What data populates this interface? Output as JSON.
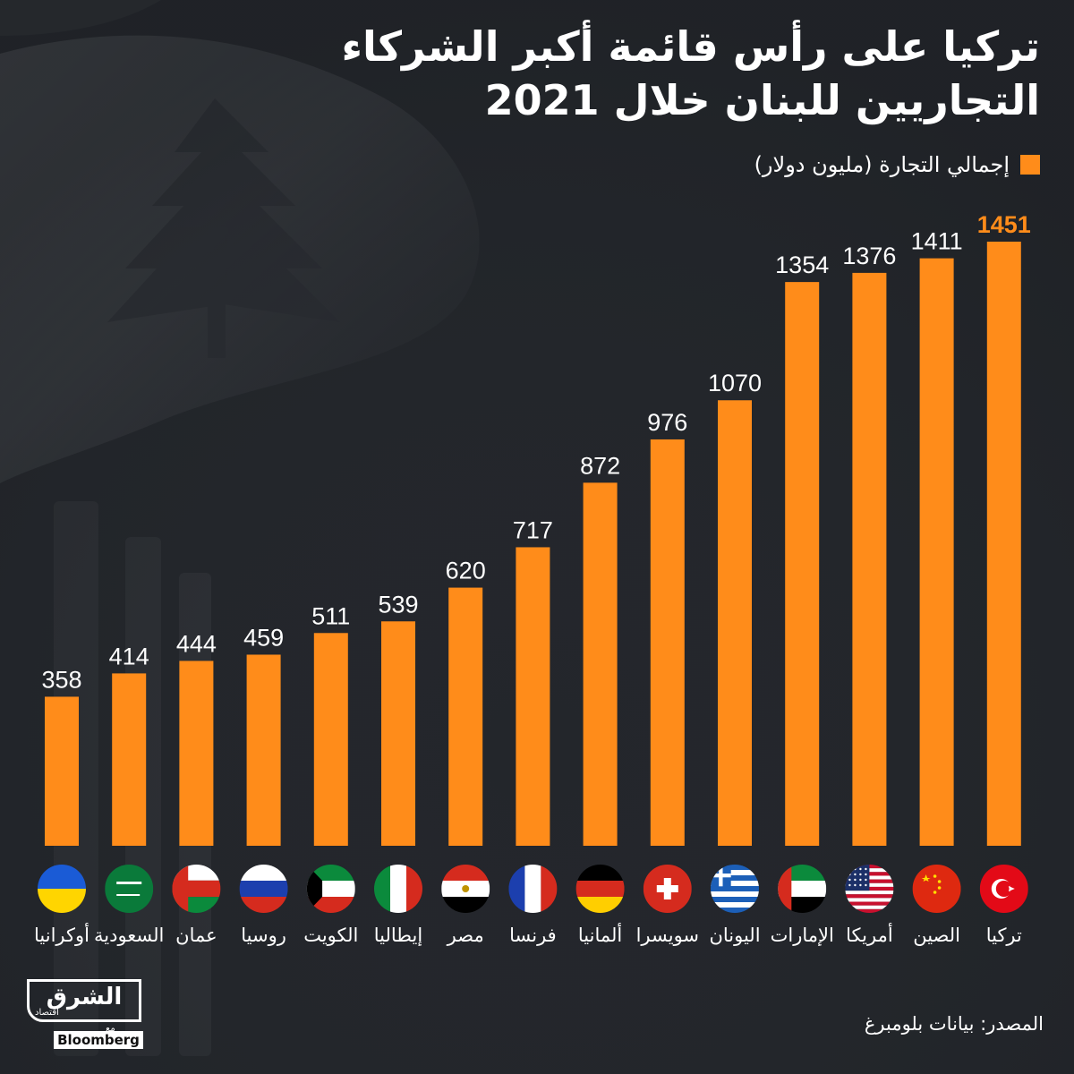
{
  "title": {
    "line1": "تركيا على رأس قائمة أكبر الشركاء",
    "line2": "التجاريين للبنان خلال 2021"
  },
  "legend": {
    "label": "إجمالي التجارة (مليون دولار)",
    "color": "#ff8c1a"
  },
  "chart_data": {
    "type": "bar",
    "ylim": [
      0,
      1451
    ],
    "bar_color": "#ff8c1a",
    "highlight_label_color": "#ff8c1a",
    "categories": [
      "أوكرانيا",
      "السعودية",
      "عمان",
      "روسيا",
      "الكويت",
      "إيطاليا",
      "مصر",
      "فرنسا",
      "ألمانيا",
      "سويسرا",
      "اليونان",
      "الإمارات",
      "أمريكا",
      "الصين",
      "تركيا"
    ],
    "values": [
      358,
      414,
      444,
      459,
      511,
      539,
      620,
      717,
      872,
      976,
      1070,
      1354,
      1376,
      1411,
      1451
    ],
    "flags": [
      "ukraine",
      "saudi-arabia",
      "oman",
      "russia",
      "kuwait",
      "italy",
      "egypt",
      "france",
      "germany",
      "switzerland",
      "greece",
      "uae",
      "usa",
      "china",
      "turkey"
    ],
    "highlight_index": 14
  },
  "source": "المصدر: بيانات بلومبرغ",
  "logo": {
    "main": "الشرق",
    "sub": "اقتصاد",
    "with": "مع",
    "brand": "Bloomberg"
  }
}
